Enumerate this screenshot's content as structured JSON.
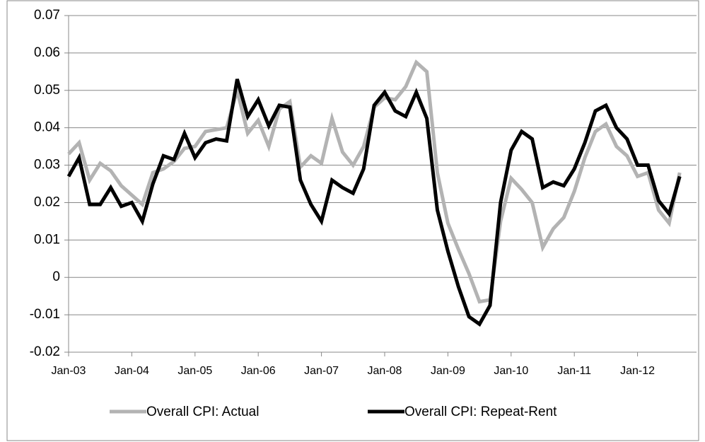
{
  "chart_data": {
    "type": "line",
    "categories": [
      "Jan-03",
      null,
      null,
      null,
      null,
      null,
      "Jan-04",
      null,
      null,
      null,
      null,
      null,
      "Jan-05",
      null,
      null,
      null,
      null,
      null,
      "Jan-06",
      null,
      null,
      null,
      null,
      null,
      "Jan-07",
      null,
      null,
      null,
      null,
      null,
      "Jan-08",
      null,
      null,
      null,
      null,
      null,
      "Jan-09",
      null,
      null,
      null,
      null,
      null,
      "Jan-10",
      null,
      null,
      null,
      null,
      null,
      "Jan-11",
      null,
      null,
      null,
      null,
      null,
      "Jan-12",
      null,
      null,
      null,
      null
    ],
    "series": [
      {
        "name": "Overall CPI: Actual",
        "color": "#b3b3b3",
        "values": [
          0.033,
          0.036,
          0.026,
          0.0305,
          0.0285,
          0.0245,
          0.022,
          0.0195,
          0.028,
          0.029,
          0.031,
          0.0345,
          0.035,
          0.039,
          0.0395,
          0.04,
          0.05,
          0.0385,
          0.042,
          0.035,
          0.045,
          0.047,
          0.0295,
          0.0325,
          0.0305,
          0.0425,
          0.0335,
          0.03,
          0.035,
          0.0455,
          0.048,
          0.0475,
          0.051,
          0.0575,
          0.055,
          0.028,
          0.0145,
          0.0075,
          0.001,
          -0.0065,
          -0.006,
          0.015,
          0.0265,
          0.0235,
          0.02,
          0.008,
          0.013,
          0.016,
          0.023,
          0.032,
          0.039,
          0.041,
          0.035,
          0.0325,
          0.027,
          0.028,
          0.018,
          0.0145,
          0.028
        ]
      },
      {
        "name": "Overall CPI: Repeat-Rent",
        "color": "#000000",
        "values": [
          0.027,
          0.032,
          0.0195,
          0.0195,
          0.024,
          0.019,
          0.02,
          0.015,
          0.025,
          0.0325,
          0.0315,
          0.0385,
          0.032,
          0.036,
          0.037,
          0.0365,
          0.053,
          0.043,
          0.0475,
          0.0405,
          0.046,
          0.0455,
          0.026,
          0.0195,
          0.015,
          0.026,
          0.024,
          0.0225,
          0.029,
          0.046,
          0.0495,
          0.0445,
          0.043,
          0.0495,
          0.0425,
          0.018,
          0.007,
          -0.0025,
          -0.0105,
          -0.0125,
          -0.0075,
          0.02,
          0.034,
          0.039,
          0.037,
          0.024,
          0.0255,
          0.0245,
          0.029,
          0.036,
          0.0445,
          0.046,
          0.04,
          0.037,
          0.03,
          0.03,
          0.0205,
          0.017,
          0.027
        ]
      }
    ],
    "ylim": [
      -0.02,
      0.07
    ],
    "yticks": [
      -0.02,
      -0.01,
      0,
      0.01,
      0.02,
      0.03,
      0.04,
      0.05,
      0.06,
      0.07
    ],
    "grid": true,
    "legend": "bottom"
  }
}
